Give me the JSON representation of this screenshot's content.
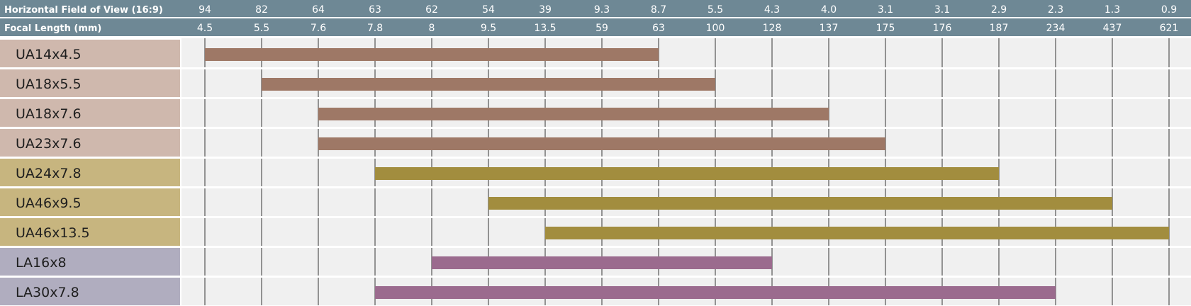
{
  "header": {
    "fov_label": "Horizontal Field of View (16:9)",
    "focal_label": "Focal Length (mm)"
  },
  "colors": {
    "header_bg": "#6e8895",
    "grid_bg": "#f0f0f0",
    "grid_line": "#333333",
    "row_separator": "#ffffff"
  },
  "chart_data": {
    "type": "bar",
    "orientation": "horizontal-range",
    "x_fov_ticks": [
      "94",
      "82",
      "64",
      "63",
      "62",
      "54",
      "39",
      "9.3",
      "8.7",
      "5.5",
      "4.3",
      "4.0",
      "3.1",
      "3.1",
      "2.9",
      "2.3",
      "1.3",
      "0.9"
    ],
    "x_focal_ticks": [
      "4.5",
      "5.5",
      "7.6",
      "7.8",
      "8",
      "9.5",
      "13.5",
      "59",
      "63",
      "100",
      "128",
      "137",
      "175",
      "176",
      "187",
      "234",
      "437",
      "621"
    ],
    "series": [
      {
        "name": "UA14x4.5",
        "start": 4.5,
        "end": 63,
        "color": "#9e7866",
        "label_bg": "#cfb8ad"
      },
      {
        "name": "UA18x5.5",
        "start": 5.5,
        "end": 100,
        "color": "#9e7866",
        "label_bg": "#cfb8ad"
      },
      {
        "name": "UA18x7.6",
        "start": 7.6,
        "end": 137,
        "color": "#9e7866",
        "label_bg": "#cfb8ad"
      },
      {
        "name": "UA23x7.6",
        "start": 7.6,
        "end": 175,
        "color": "#9e7866",
        "label_bg": "#cfb8ad"
      },
      {
        "name": "UA24x7.8",
        "start": 7.8,
        "end": 187,
        "color": "#a28d3e",
        "label_bg": "#c7b57f"
      },
      {
        "name": "UA46x9.5",
        "start": 9.5,
        "end": 437,
        "color": "#a28d3e",
        "label_bg": "#c7b57f"
      },
      {
        "name": "UA46x13.5",
        "start": 13.5,
        "end": 621,
        "color": "#a28d3e",
        "label_bg": "#c7b57f"
      },
      {
        "name": "LA16x8",
        "start": 8,
        "end": 128,
        "color": "#9b6b8e",
        "label_bg": "#b0adbf"
      },
      {
        "name": "LA30x7.8",
        "start": 7.8,
        "end": 234,
        "color": "#9b6b8e",
        "label_bg": "#b0adbf"
      }
    ]
  }
}
